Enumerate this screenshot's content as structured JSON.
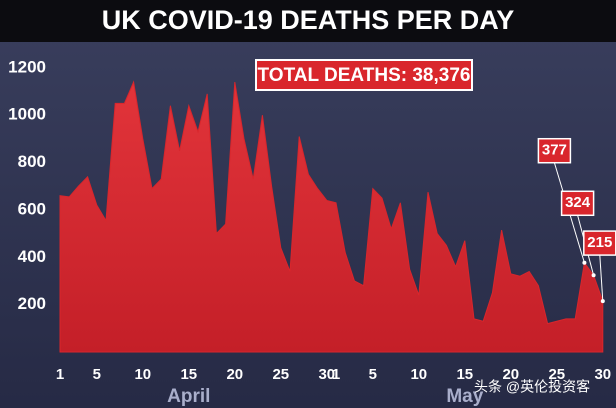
{
  "chart_data": {
    "type": "area",
    "title": "UK COVID-19 DEATHS PER DAY",
    "annotation": "TOTAL DEATHS: 38,376",
    "months": [
      "April",
      "May"
    ],
    "watermark": "头条 @英伦投资客",
    "categories": [
      "1",
      null,
      null,
      null,
      "5",
      null,
      null,
      null,
      null,
      "10",
      null,
      null,
      null,
      null,
      "15",
      null,
      null,
      null,
      null,
      "20",
      null,
      null,
      null,
      null,
      "25",
      null,
      null,
      null,
      null,
      "30",
      "1",
      null,
      null,
      null,
      "5",
      null,
      null,
      null,
      null,
      "10",
      null,
      null,
      null,
      null,
      "15",
      null,
      null,
      null,
      null,
      "20",
      null,
      null,
      null,
      null,
      "25",
      null,
      null,
      null,
      null,
      "30"
    ],
    "series": [
      {
        "name": "Deaths",
        "color": "#d9262c",
        "values": [
          660,
          655,
          700,
          740,
          620,
          555,
          1050,
          1050,
          1140,
          900,
          690,
          730,
          1040,
          850,
          1040,
          930,
          1090,
          500,
          540,
          1140,
          900,
          730,
          1000,
          700,
          440,
          340,
          910,
          750,
          690,
          640,
          630,
          420,
          300,
          280,
          690,
          650,
          520,
          630,
          350,
          240,
          675,
          500,
          450,
          360,
          470,
          140,
          130,
          250,
          515,
          330,
          320,
          340,
          280,
          120,
          130,
          140,
          140,
          377,
          324,
          215
        ]
      }
    ],
    "labeled_points": [
      57,
      58,
      59
    ],
    "ylim": [
      0,
      1250
    ],
    "yticks": [
      200,
      400,
      600,
      800,
      1000,
      1200
    ],
    "grid": false
  }
}
